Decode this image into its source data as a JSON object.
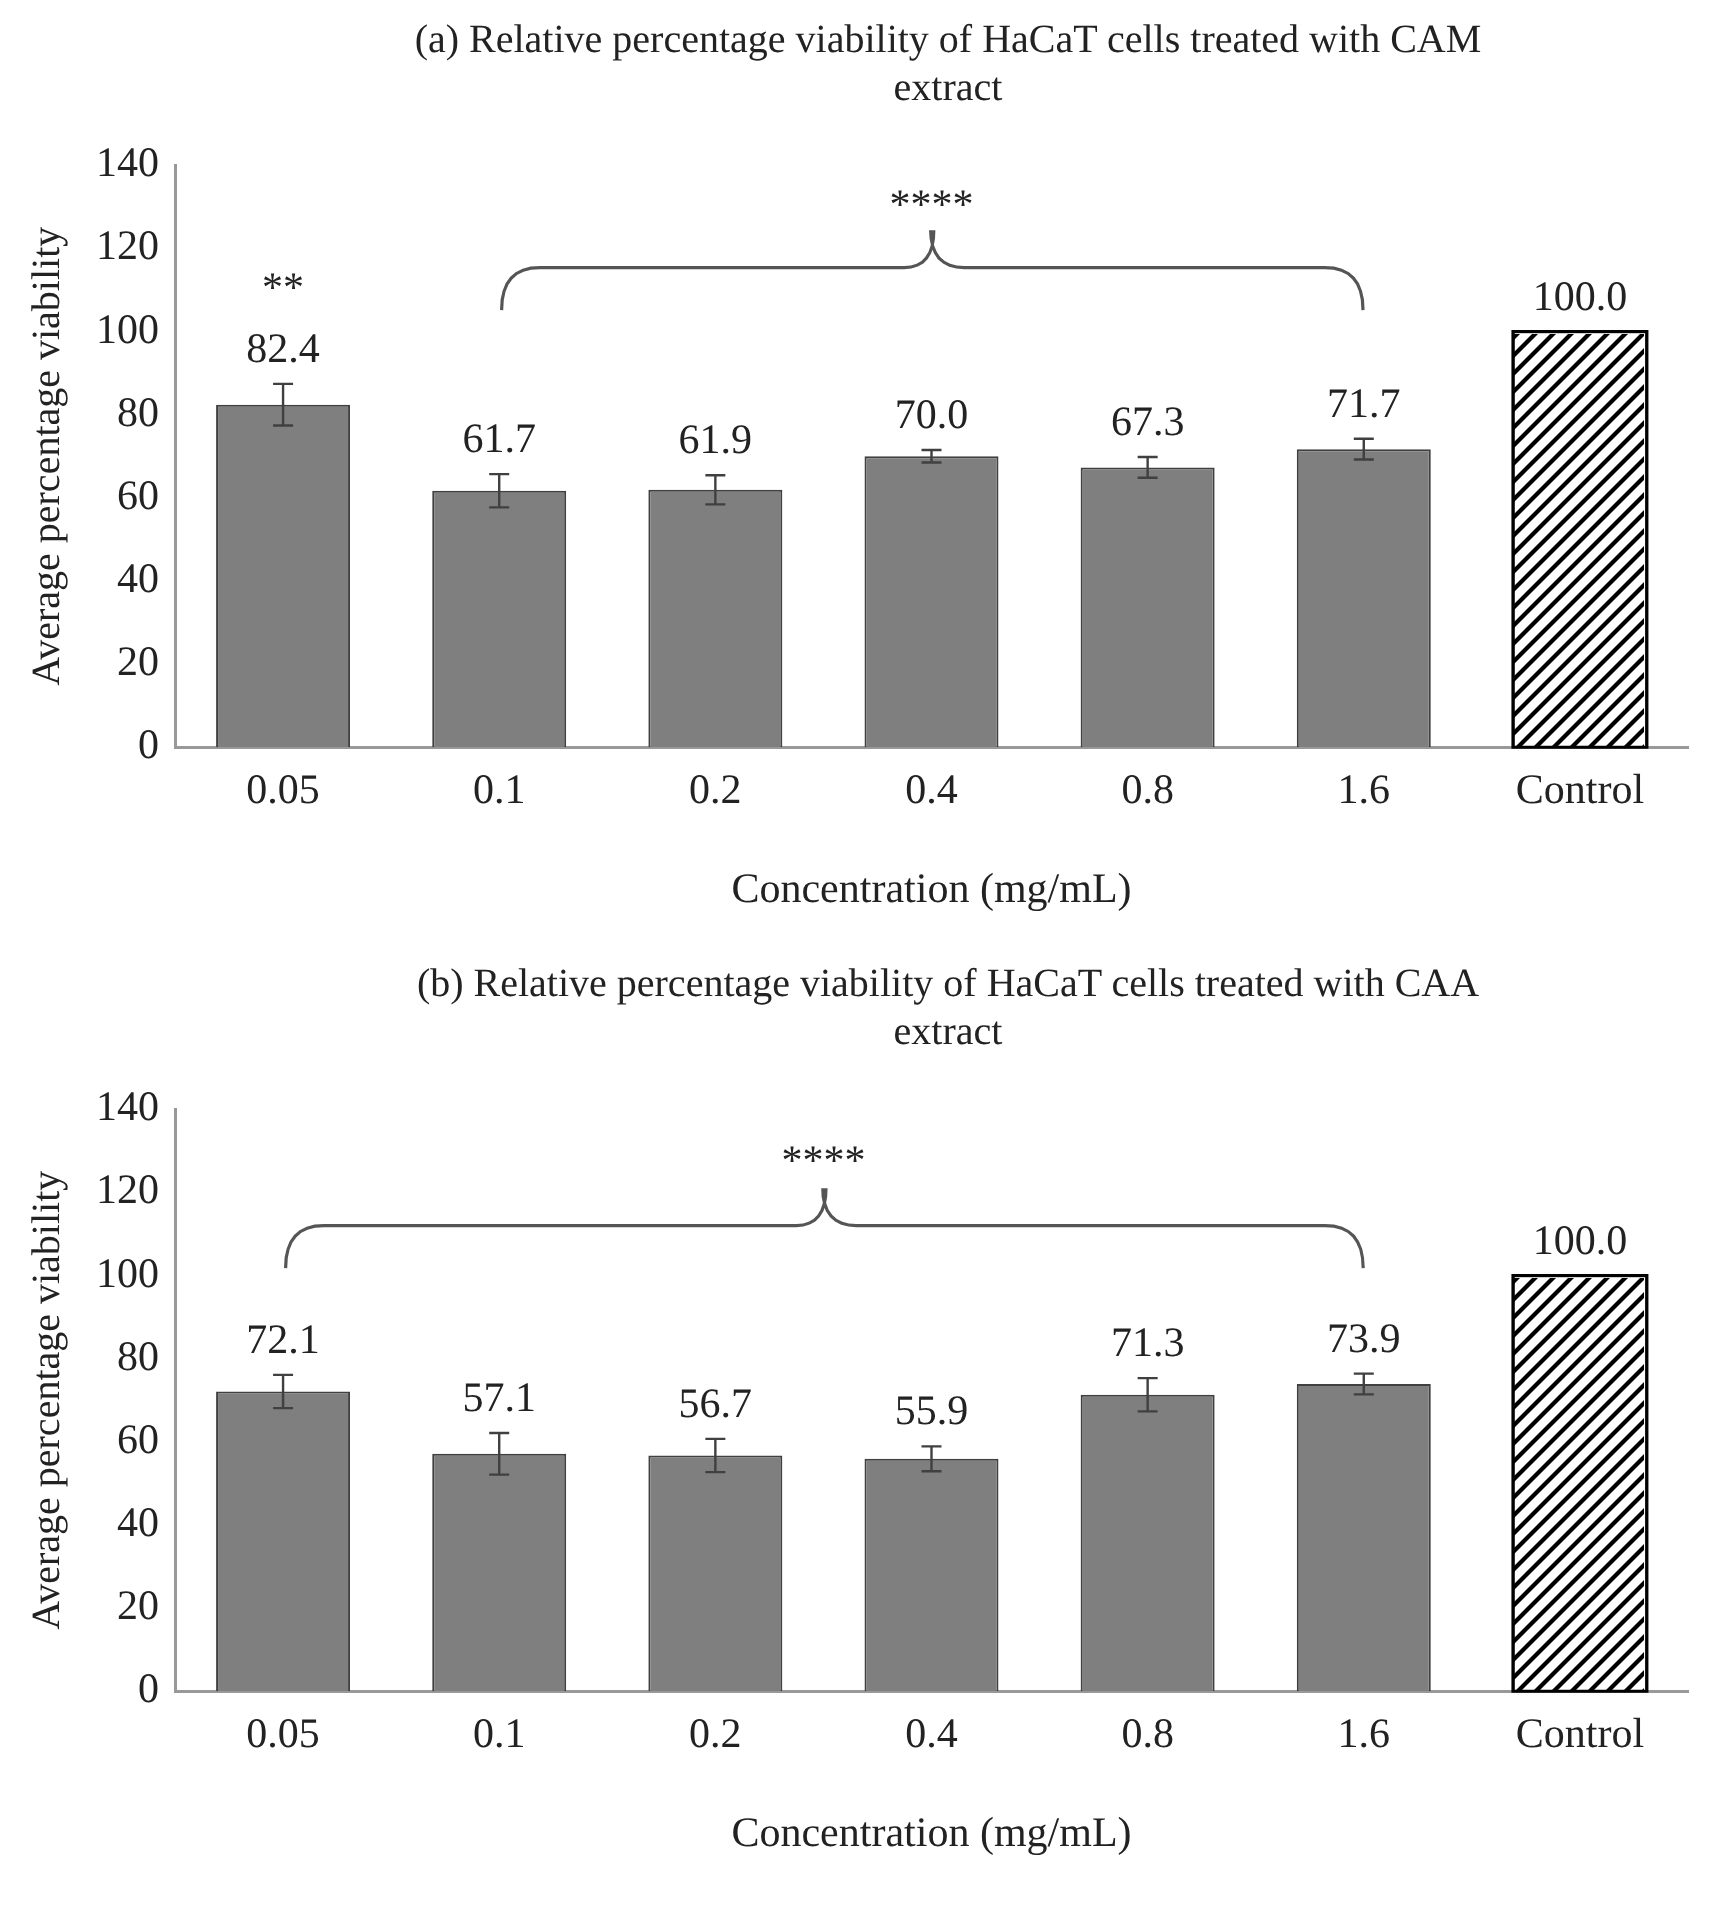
{
  "chart_data": [
    {
      "type": "bar",
      "title": "(a) Relative percentage viability of HaCaT cells treated with CAM extract",
      "xlabel": "Concentration (mg/mL)",
      "ylabel": "Average percentage viability",
      "categories": [
        "0.05",
        "0.1",
        "0.2",
        "0.4",
        "0.8",
        "1.6",
        "Control"
      ],
      "values": [
        82.4,
        61.7,
        61.9,
        70.0,
        67.3,
        71.7,
        100.0
      ],
      "errors": [
        5,
        4,
        3.5,
        1.5,
        2.5,
        2.5,
        null
      ],
      "value_labels": [
        "82.4",
        "61.7",
        "61.9",
        "70.0",
        "67.3",
        "71.7",
        "100.0"
      ],
      "colors": [
        "#7f7f7f",
        "#7f7f7f",
        "#7f7f7f",
        "#7f7f7f",
        "#7f7f7f",
        "#7f7f7f",
        "#ffffff"
      ],
      "ylim": [
        0,
        140
      ],
      "yticks": [
        0,
        20,
        40,
        60,
        80,
        100,
        120,
        140
      ],
      "grid": false,
      "legend": false,
      "annotations": [
        "**",
        "****"
      ]
    },
    {
      "type": "bar",
      "title": "(b) Relative percentage viability of HaCaT cells treated with CAA extract",
      "xlabel": "Concentration (mg/mL)",
      "ylabel": "Average percentage viability",
      "categories": [
        "0.05",
        "0.1",
        "0.2",
        "0.4",
        "0.8",
        "1.6",
        "Control"
      ],
      "values": [
        72.1,
        57.1,
        56.7,
        55.9,
        71.3,
        73.9,
        100.0
      ],
      "errors": [
        4,
        5,
        4,
        3,
        4,
        2.5,
        null
      ],
      "value_labels": [
        "72.1",
        "57.1",
        "56.7",
        "55.9",
        "71.3",
        "73.9",
        "100.0"
      ],
      "colors": [
        "#7f7f7f",
        "#7f7f7f",
        "#7f7f7f",
        "#7f7f7f",
        "#7f7f7f",
        "#7f7f7f",
        "#ffffff"
      ],
      "ylim": [
        0,
        140
      ],
      "yticks": [
        0,
        20,
        40,
        60,
        80,
        100,
        120,
        140
      ],
      "grid": false,
      "legend": false,
      "annotations": [
        "****"
      ]
    }
  ]
}
